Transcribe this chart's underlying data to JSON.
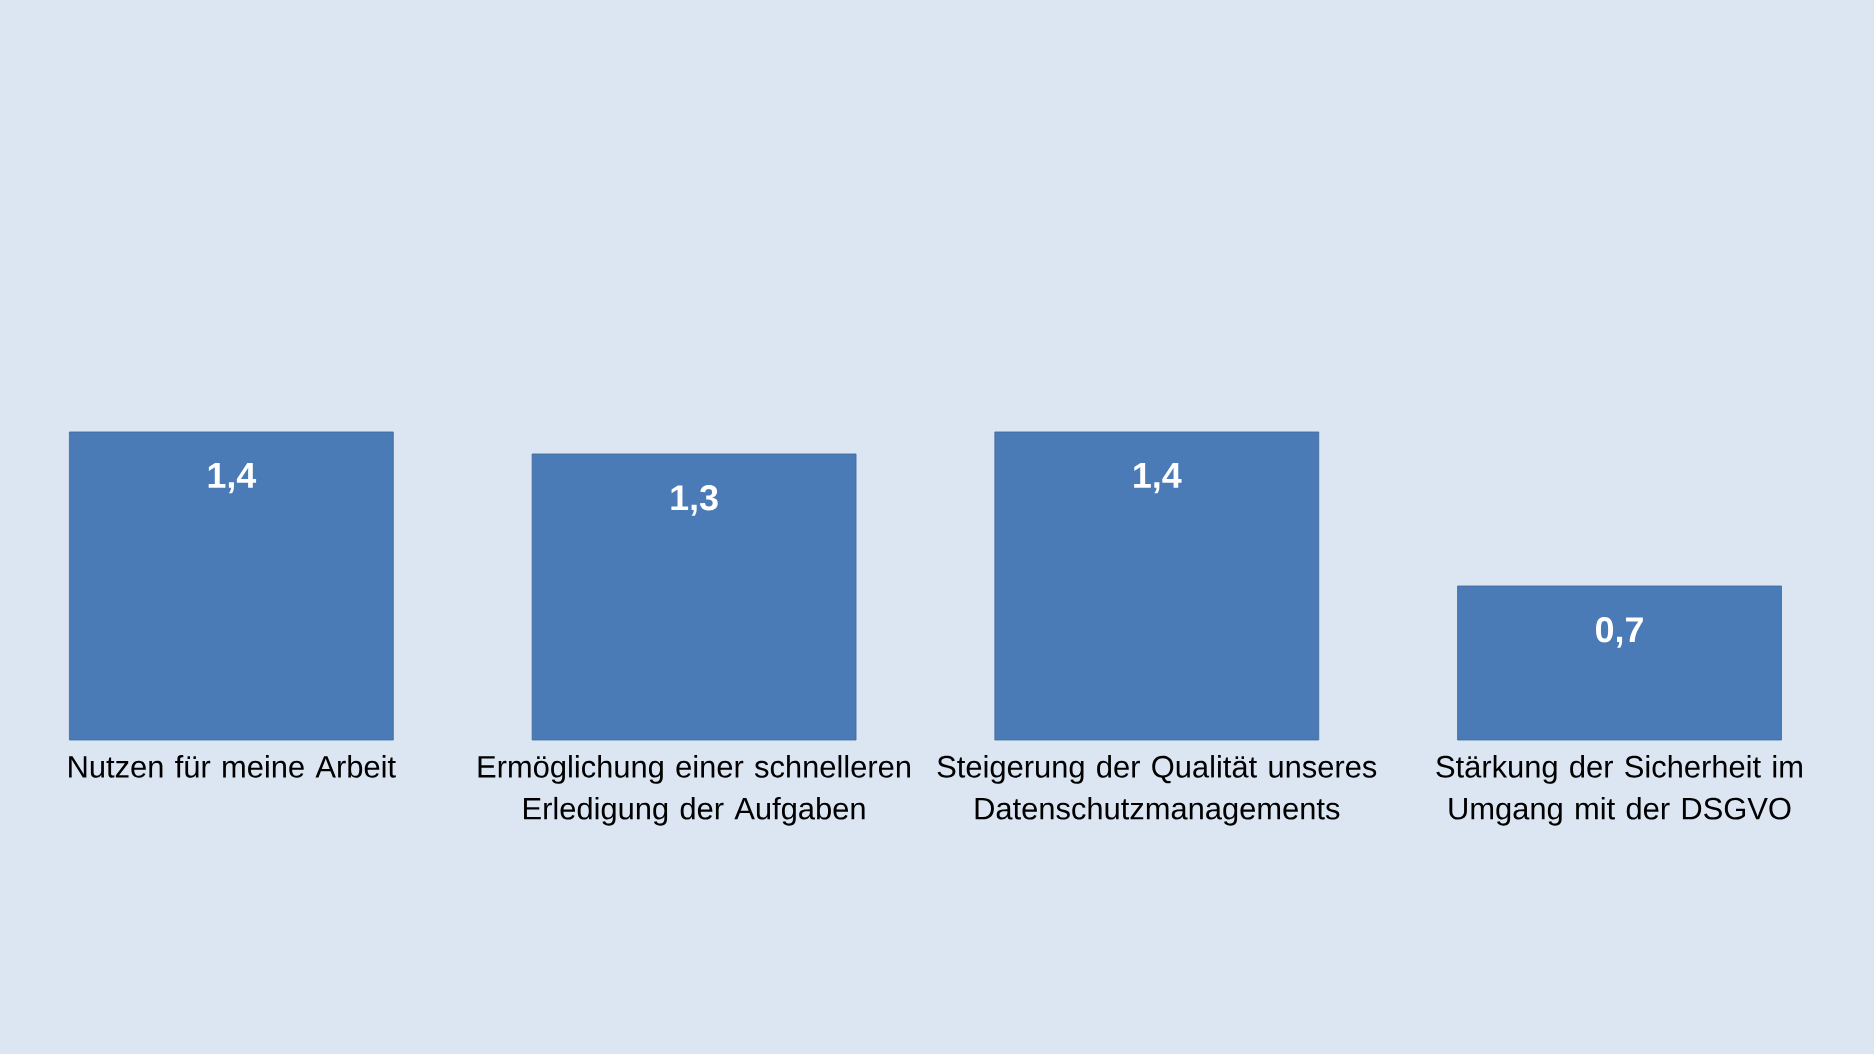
{
  "chart_data": {
    "type": "bar",
    "categories": [
      "Nutzen für meine Arbeit",
      "Ermöglichung einer schnelleren Erledigung der Aufgaben",
      "Steigerung der Qualität unseres Datenschutzmanagements",
      "Stärkung der Sicherheit im Umgang mit der DSGVO"
    ],
    "values": [
      1.4,
      1.3,
      1.4,
      0.7
    ],
    "value_labels": [
      "1,4",
      "1,3",
      "1,4",
      "0,7"
    ],
    "color": "#4a7bb7"
  }
}
